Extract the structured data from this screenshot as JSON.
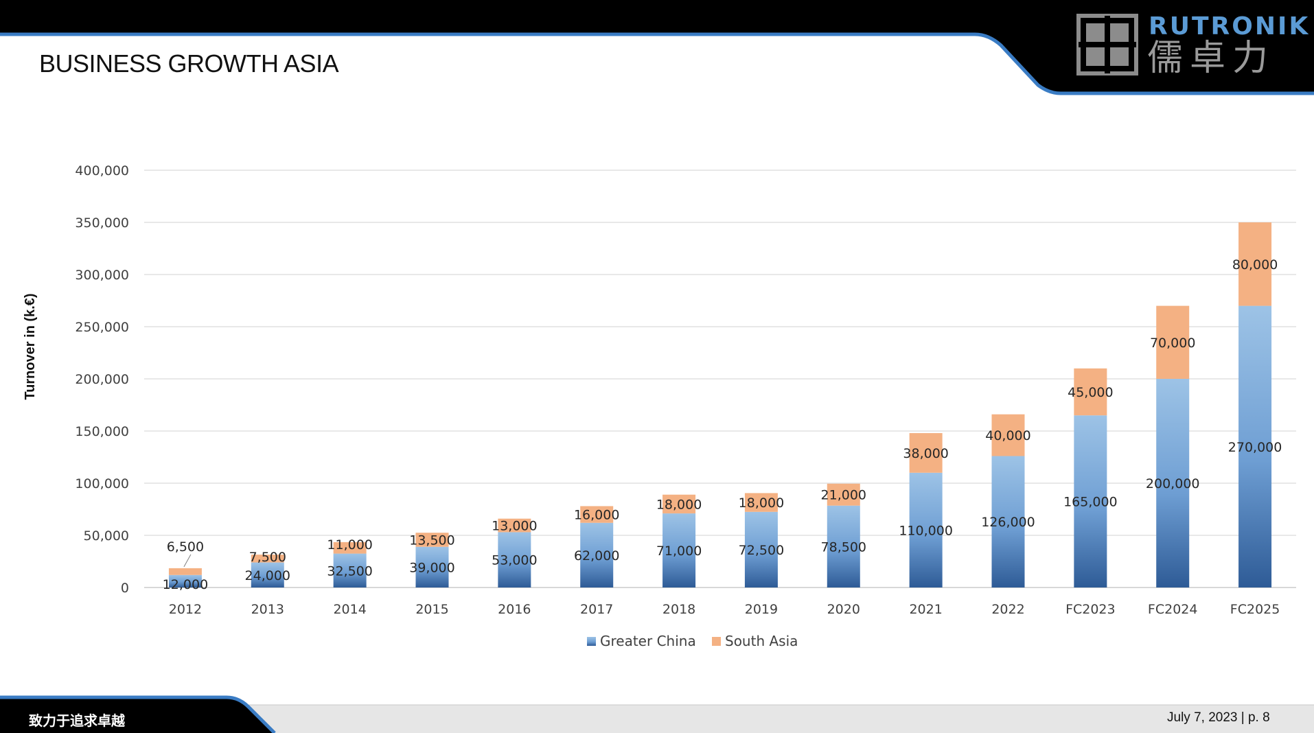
{
  "slide": {
    "title": "BUSINESS GROWTH ASIA",
    "footer_motto": "致力于追求卓越",
    "footer_date_page": "July 7, 2023 | p. 8"
  },
  "logo": {
    "name_en": "RUTRONIK",
    "name_cn": "儒卓力"
  },
  "colors": {
    "header_bg": "#000000",
    "accent_blue": "#3a7cc4",
    "greater_china_light": "#9dc3e6",
    "greater_china_dark": "#2e5b96",
    "south_asia": "#f4b183",
    "footer_bg": "#e6e6e6"
  },
  "chart_data": {
    "type": "bar",
    "stacked": true,
    "title": "",
    "xlabel": "",
    "ylabel": "Turnover in (k.€)",
    "ylim": [
      0,
      400000
    ],
    "yticks": [
      "0",
      "50,000",
      "100,000",
      "150,000",
      "200,000",
      "250,000",
      "300,000",
      "350,000",
      "400,000"
    ],
    "ytick_values": [
      0,
      50000,
      100000,
      150000,
      200000,
      250000,
      300000,
      350000,
      400000
    ],
    "grid": true,
    "legend_position": "bottom",
    "categories": [
      "2012",
      "2013",
      "2014",
      "2015",
      "2016",
      "2017",
      "2018",
      "2019",
      "2020",
      "2021",
      "2022",
      "FC2023",
      "FC2024",
      "FC2025"
    ],
    "series": [
      {
        "name": "Greater China",
        "values": [
          12000,
          24000,
          32500,
          39000,
          53000,
          62000,
          71000,
          72500,
          78500,
          110000,
          126000,
          165000,
          200000,
          270000
        ],
        "labels": [
          "12,000",
          "24,000",
          "32,500",
          "39,000",
          "53,000",
          "62,000",
          "71,000",
          "72,500",
          "78,500",
          "110,000",
          "126,000",
          "165,000",
          "200,000",
          "270,000"
        ]
      },
      {
        "name": "South Asia",
        "values": [
          6500,
          7500,
          11000,
          13500,
          13000,
          16000,
          18000,
          18000,
          21000,
          38000,
          40000,
          45000,
          70000,
          80000
        ],
        "labels": [
          "6,500",
          "7,500",
          "11,000",
          "13,500",
          "13,000",
          "16,000",
          "18,000",
          "18,000",
          "21,000",
          "38,000",
          "40,000",
          "45,000",
          "70,000",
          "80,000"
        ]
      }
    ]
  }
}
